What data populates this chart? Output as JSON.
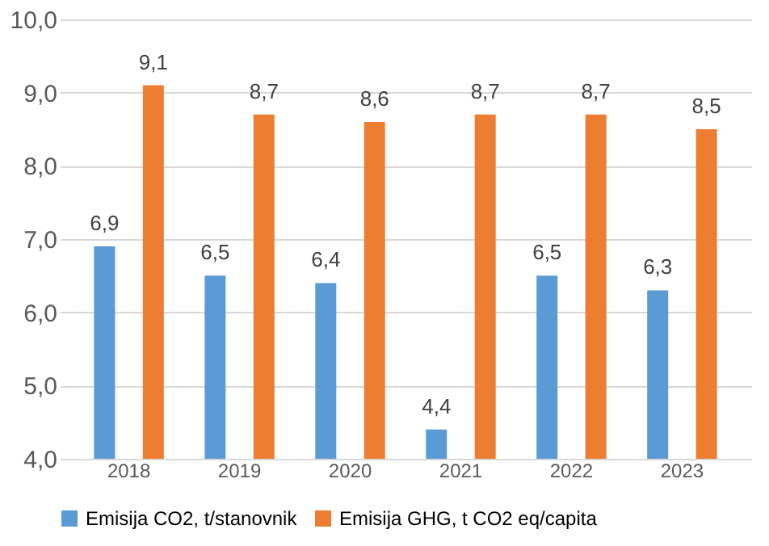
{
  "chart_data": {
    "type": "bar",
    "categories": [
      "2018",
      "2019",
      "2020",
      "2021",
      "2022",
      "2023"
    ],
    "series": [
      {
        "name": "Emisija CO2, t/stanovnik",
        "color": "#5b9bd5",
        "values": [
          6.9,
          6.5,
          6.4,
          4.4,
          6.5,
          6.3
        ],
        "value_labels": [
          "6,9",
          "6,5",
          "6,4",
          "4,4",
          "6,5",
          "6,3"
        ]
      },
      {
        "name": "Emisija GHG, t CO2 eq/capita",
        "color": "#ed7d31",
        "values": [
          9.1,
          8.7,
          8.6,
          8.7,
          8.7,
          8.5
        ],
        "value_labels": [
          "9,1",
          "8,7",
          "8,6",
          "8,7",
          "8,7",
          "8,5"
        ]
      }
    ],
    "ylim": [
      4,
      10
    ],
    "yticks": [
      {
        "value": 4,
        "label": "4,0"
      },
      {
        "value": 5,
        "label": "5,0"
      },
      {
        "value": 6,
        "label": "6,0"
      },
      {
        "value": 7,
        "label": "7,0"
      },
      {
        "value": 8,
        "label": "8,0"
      },
      {
        "value": 9,
        "label": "9,0"
      },
      {
        "value": 10,
        "label": "10,0"
      }
    ],
    "grid": "y",
    "legend": "bottom"
  }
}
